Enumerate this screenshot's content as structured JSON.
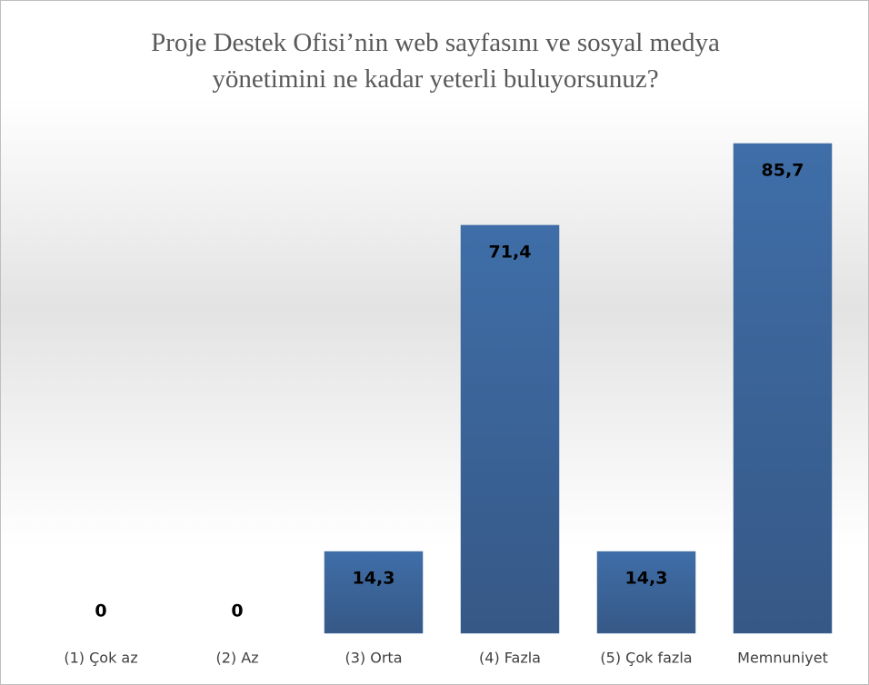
{
  "chart_data": {
    "type": "bar",
    "title": "Proje Destek Ofisi’nin web sayfasını ve sosyal medya yönetimini ne kadar yeterli buluyorsunuz?",
    "categories": [
      "(1) Çok az",
      "(2) Az",
      "(3) Orta",
      "(4) Fazla",
      "(5) Çok fazla",
      "Memnuniyet"
    ],
    "values": [
      0,
      0,
      14.3,
      71.4,
      14.3,
      85.7
    ],
    "value_labels": [
      "0",
      "0",
      "14,3",
      "71,4",
      "14,3",
      "85,7"
    ],
    "color": "#3d6699"
  }
}
